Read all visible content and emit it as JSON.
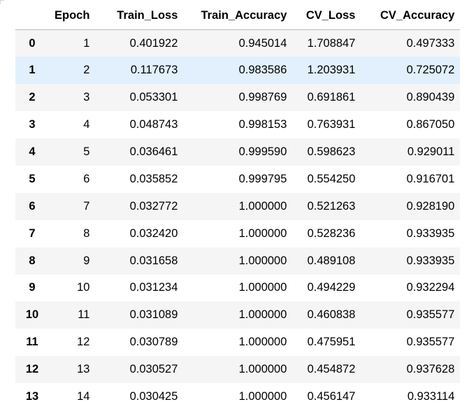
{
  "table": {
    "columns": [
      "",
      "Epoch",
      "Train_Loss",
      "Train_Accuracy",
      "CV_Loss",
      "CV_Accuracy"
    ],
    "hover_row_index": 1,
    "rows": [
      {
        "index": "0",
        "epoch": "1",
        "train_loss": "0.401922",
        "train_accuracy": "0.945014",
        "cv_loss": "1.708847",
        "cv_accuracy": "0.497333"
      },
      {
        "index": "1",
        "epoch": "2",
        "train_loss": "0.117673",
        "train_accuracy": "0.983586",
        "cv_loss": "1.203931",
        "cv_accuracy": "0.725072"
      },
      {
        "index": "2",
        "epoch": "3",
        "train_loss": "0.053301",
        "train_accuracy": "0.998769",
        "cv_loss": "0.691861",
        "cv_accuracy": "0.890439"
      },
      {
        "index": "3",
        "epoch": "4",
        "train_loss": "0.048743",
        "train_accuracy": "0.998153",
        "cv_loss": "0.763931",
        "cv_accuracy": "0.867050"
      },
      {
        "index": "4",
        "epoch": "5",
        "train_loss": "0.036461",
        "train_accuracy": "0.999590",
        "cv_loss": "0.598623",
        "cv_accuracy": "0.929011"
      },
      {
        "index": "5",
        "epoch": "6",
        "train_loss": "0.035852",
        "train_accuracy": "0.999795",
        "cv_loss": "0.554250",
        "cv_accuracy": "0.916701"
      },
      {
        "index": "6",
        "epoch": "7",
        "train_loss": "0.032772",
        "train_accuracy": "1.000000",
        "cv_loss": "0.521263",
        "cv_accuracy": "0.928190"
      },
      {
        "index": "7",
        "epoch": "8",
        "train_loss": "0.032420",
        "train_accuracy": "1.000000",
        "cv_loss": "0.528236",
        "cv_accuracy": "0.933935"
      },
      {
        "index": "8",
        "epoch": "9",
        "train_loss": "0.031658",
        "train_accuracy": "1.000000",
        "cv_loss": "0.489108",
        "cv_accuracy": "0.933935"
      },
      {
        "index": "9",
        "epoch": "10",
        "train_loss": "0.031234",
        "train_accuracy": "1.000000",
        "cv_loss": "0.494229",
        "cv_accuracy": "0.932294"
      },
      {
        "index": "10",
        "epoch": "11",
        "train_loss": "0.031089",
        "train_accuracy": "1.000000",
        "cv_loss": "0.460838",
        "cv_accuracy": "0.935577"
      },
      {
        "index": "11",
        "epoch": "12",
        "train_loss": "0.030789",
        "train_accuracy": "1.000000",
        "cv_loss": "0.475951",
        "cv_accuracy": "0.935577"
      },
      {
        "index": "12",
        "epoch": "13",
        "train_loss": "0.030527",
        "train_accuracy": "1.000000",
        "cv_loss": "0.454872",
        "cv_accuracy": "0.937628"
      },
      {
        "index": "13",
        "epoch": "14",
        "train_loss": "0.030425",
        "train_accuracy": "1.000000",
        "cv_loss": "0.456147",
        "cv_accuracy": "0.933114"
      }
    ]
  }
}
